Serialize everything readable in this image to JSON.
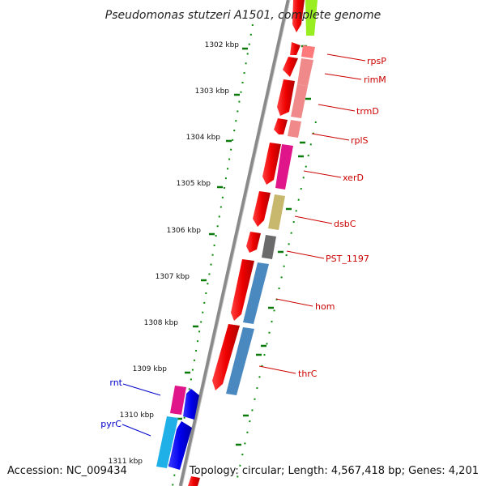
{
  "title": "Pseudomonas stutzeri A1501, complete genome",
  "footer": {
    "accession": "Accession: NC_009434",
    "topology": "Topology: circular; Length: 4,567,418 bp; Genes: 4,201"
  },
  "colors": {
    "backbone": "#8a8a8a",
    "tick": "#0a7a0a",
    "dots": "#0a8a0a",
    "label_red": "#cc0000",
    "label_blue": "#0000cc"
  },
  "kbp_labels": [
    "1302 kbp",
    "1303 kbp",
    "1304 kbp",
    "1305 kbp",
    "1306 kbp",
    "1307 kbp",
    "1308 kbp",
    "1309 kbp",
    "1310 kbp",
    "1311 kbp"
  ],
  "genes_right": [
    "rpsP",
    "rimM",
    "trmD",
    "rplS",
    "xerD",
    "dsbC",
    "PST_1197",
    "hom",
    "thrC"
  ],
  "genes_left": [
    "rnt",
    "pyrC"
  ],
  "feature_colors": {
    "cds_red": "#ee0000",
    "rpsP": "#ff7a7a",
    "rimM": "#f08a8a",
    "trmD": "#f08a8a",
    "rplS": "#f08a8a",
    "xerD": "#e0158a",
    "dsbC": "#c8b86e",
    "PST_1197": "#6a6a6a",
    "hom": "#4a88c0",
    "thrC": "#4a88c0",
    "rnt": "#e0158a",
    "pyrC": "#20b0e8",
    "blue_cds": "#0000ee",
    "lime": "#99ee22"
  }
}
